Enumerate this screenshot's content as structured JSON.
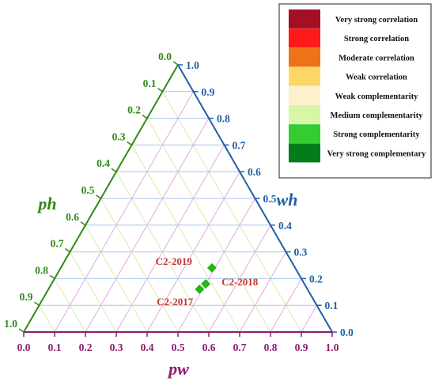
{
  "chart_data": {
    "type": "scatter",
    "subtype": "ternary",
    "colors": {
      "ph": "#2e8b15",
      "wh": "#1f5fa8",
      "pw": "#8b1a6b",
      "grid_ph": "#dbe9a6",
      "grid_wh": "#a9c6ec",
      "grid_pw": "#e7a7e1",
      "point": "#22b614",
      "point_label": "#c0392b"
    },
    "axes": {
      "pw": {
        "label": "pw",
        "range": [
          0,
          1
        ],
        "ticks": [
          "0.0",
          "0.1",
          "0.2",
          "0.3",
          "0.4",
          "0.5",
          "0.6",
          "0.7",
          "0.8",
          "0.9",
          "1.0"
        ]
      },
      "ph": {
        "label": "ph",
        "range": [
          0,
          1
        ],
        "ticks": [
          "0.0",
          "0.1",
          "0.2",
          "0.3",
          "0.4",
          "0.5",
          "0.6",
          "0.7",
          "0.8",
          "0.9",
          "1.0"
        ]
      },
      "wh": {
        "label": "wh",
        "range": [
          0,
          1
        ],
        "ticks": [
          "0.0",
          "0.1",
          "0.2",
          "0.3",
          "0.4",
          "0.5",
          "0.6",
          "0.7",
          "0.8",
          "0.9",
          "1.0"
        ]
      }
    },
    "grid": true,
    "legend_position": "top-right",
    "legend": [
      {
        "label": "Very strong correlation",
        "color": "#a50f25"
      },
      {
        "label": "Strong correlation",
        "color": "#ff1a1a"
      },
      {
        "label": "Moderate correlation",
        "color": "#ee7318"
      },
      {
        "label": "Weak correlation",
        "color": "#fdd766"
      },
      {
        "label": "Weak complementarity",
        "color": "#fdf0cd"
      },
      {
        "label": "Medium complementarity",
        "color": "#d9f6a7"
      },
      {
        "label": "Strong complementarity",
        "color": "#33cc33"
      },
      {
        "label": "Very strong complementary",
        "color": "#037d1b"
      }
    ],
    "points": [
      {
        "label": "C2-2019",
        "pw": 0.49,
        "wh": 0.24,
        "ph": 0.27
      },
      {
        "label": "C2-2018",
        "pw": 0.5,
        "wh": 0.18,
        "ph": 0.32
      },
      {
        "label": "C2-2017",
        "pw": 0.49,
        "wh": 0.16,
        "ph": 0.35
      }
    ]
  }
}
